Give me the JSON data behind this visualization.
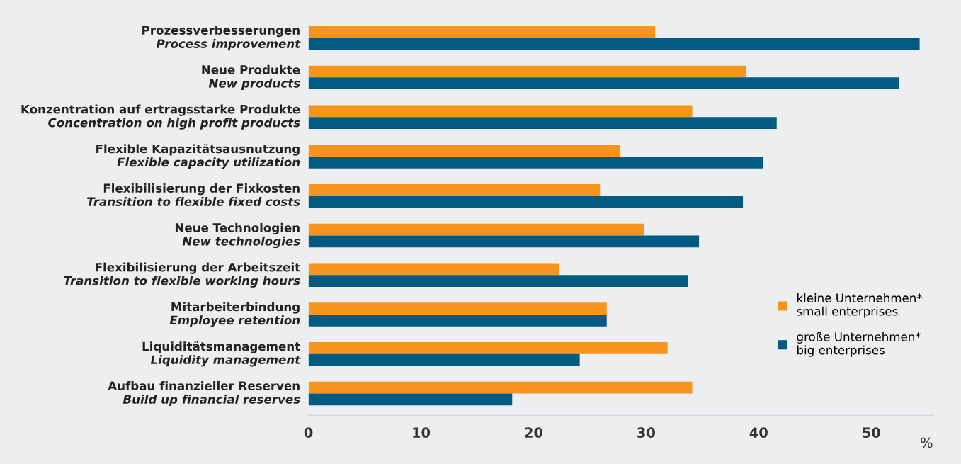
{
  "chart_data": {
    "type": "bar",
    "orientation": "horizontal",
    "categories": [
      "Prozessverbesserungen\nProcess improvement",
      "Neue Produkte\nNew products",
      "Konzentration auf ertragsstarke Produkte\nConcentration on high profit products",
      "Flexible Kapazitätsausnutzung\nFlexible capacity utilization",
      "Flexibilisierung der Fixkosten\nTransition to flexible fixed costs",
      "Neue Technologien\nNew technologies",
      "Flexibilisierung der Arbeitszeit\nTransition to flexible working hours",
      "Mitarbeiterbindung\nEmployee retention",
      "Liquiditätsmanagement\nLiquidity management",
      "Aufbau finanzieller Reserven\nBuild up financial reserves"
    ],
    "series": [
      {
        "name": "kleine Unternehmen*\nsmall enterprises",
        "color": "#f7941d",
        "values": [
          30.8,
          38.9,
          34.1,
          27.7,
          25.9,
          29.8,
          22.3,
          26.5,
          31.9,
          34.1
        ]
      },
      {
        "name": "große Unternehmen*\nbig enterprises",
        "color": "#005a82",
        "values": [
          54.3,
          52.5,
          41.6,
          40.4,
          38.6,
          34.7,
          33.7,
          26.5,
          24.1,
          18.1
        ]
      }
    ],
    "xlim": [
      0,
      55.5
    ],
    "xticks": [
      0,
      10,
      20,
      30,
      40,
      50
    ],
    "xlabel": "%",
    "grid": false,
    "legend": "bottom right"
  }
}
